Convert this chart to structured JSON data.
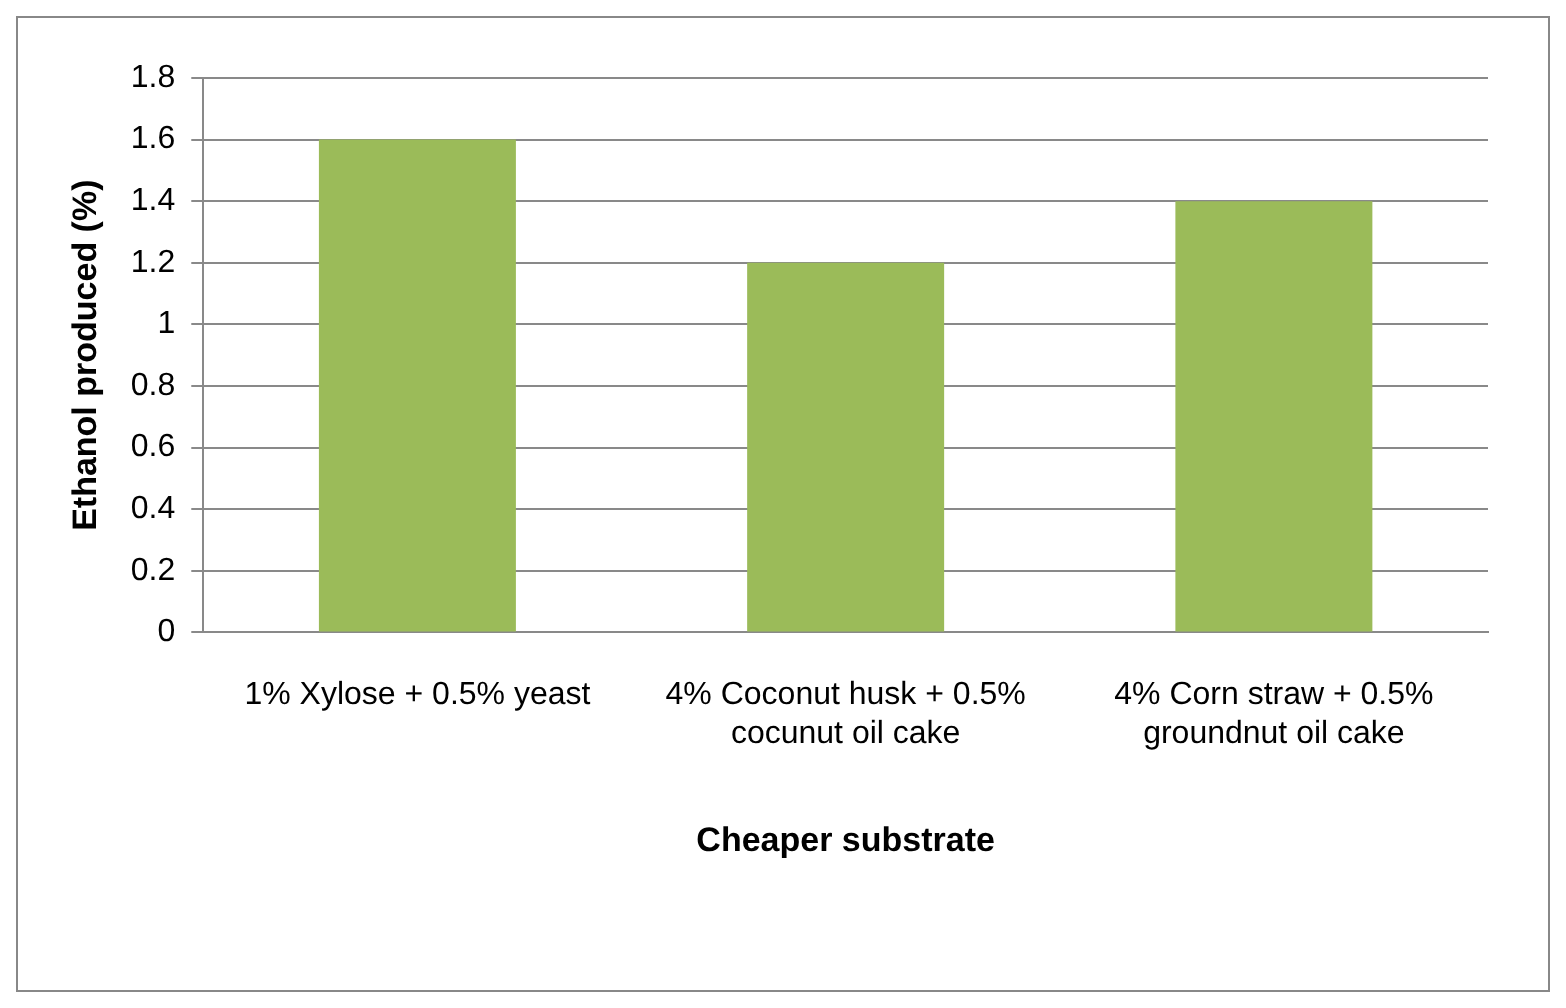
{
  "chart_data": {
    "type": "bar",
    "xlabel": "Cheaper substrate",
    "ylabel": "Ethanol produced (%)",
    "categories": [
      "1% Xylose + 0.5% yeast",
      "4% Coconut husk + 0.5% cocunut oil cake",
      "4% Corn straw + 0.5% groundnut oil cake"
    ],
    "values": [
      1.6,
      1.2,
      1.4
    ],
    "color": "#9bbb59",
    "ylim": [
      0,
      1.8
    ],
    "yticks": [
      0,
      0.2,
      0.4,
      0.6,
      0.8,
      1,
      1.2,
      1.4,
      1.6,
      1.8
    ],
    "grid": "y",
    "legend": false
  }
}
